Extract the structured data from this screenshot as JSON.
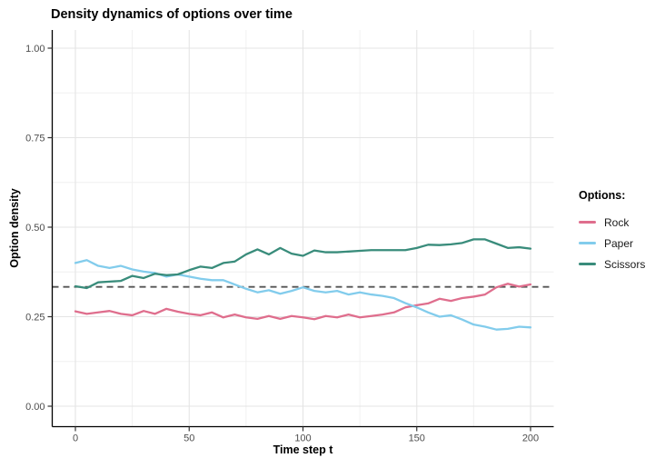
{
  "chart_data": {
    "type": "line",
    "title": "Density dynamics of options over time",
    "xlabel": "Time step t",
    "ylabel": "Option density",
    "legend": {
      "title": "Options:",
      "position": "right"
    },
    "x": [
      0,
      5,
      10,
      15,
      20,
      25,
      30,
      35,
      40,
      45,
      50,
      55,
      60,
      65,
      70,
      75,
      80,
      85,
      90,
      95,
      100,
      105,
      110,
      115,
      120,
      125,
      130,
      135,
      140,
      145,
      150,
      155,
      160,
      165,
      170,
      175,
      180,
      185,
      190,
      195,
      200
    ],
    "series": [
      {
        "name": "Rock",
        "color": "#DF6E8D",
        "values": [
          0.265,
          0.258,
          0.262,
          0.266,
          0.258,
          0.254,
          0.266,
          0.258,
          0.272,
          0.264,
          0.258,
          0.254,
          0.262,
          0.248,
          0.256,
          0.248,
          0.244,
          0.252,
          0.244,
          0.252,
          0.248,
          0.243,
          0.252,
          0.248,
          0.256,
          0.248,
          0.252,
          0.256,
          0.262,
          0.276,
          0.282,
          0.287,
          0.3,
          0.294,
          0.302,
          0.306,
          0.312,
          0.332,
          0.342,
          0.334,
          0.34
        ]
      },
      {
        "name": "Paper",
        "color": "#82CCEC",
        "values": [
          0.4,
          0.408,
          0.392,
          0.386,
          0.392,
          0.382,
          0.376,
          0.372,
          0.362,
          0.368,
          0.362,
          0.356,
          0.352,
          0.352,
          0.34,
          0.328,
          0.318,
          0.324,
          0.314,
          0.322,
          0.332,
          0.322,
          0.318,
          0.322,
          0.312,
          0.318,
          0.312,
          0.308,
          0.302,
          0.288,
          0.276,
          0.262,
          0.25,
          0.254,
          0.242,
          0.228,
          0.222,
          0.214,
          0.216,
          0.222,
          0.22
        ]
      },
      {
        "name": "Scissors",
        "color": "#398C7B",
        "values": [
          0.335,
          0.33,
          0.346,
          0.348,
          0.35,
          0.364,
          0.358,
          0.37,
          0.366,
          0.368,
          0.38,
          0.39,
          0.386,
          0.4,
          0.404,
          0.424,
          0.438,
          0.424,
          0.442,
          0.426,
          0.42,
          0.435,
          0.43,
          0.43,
          0.432,
          0.434,
          0.436,
          0.436,
          0.436,
          0.436,
          0.442,
          0.451,
          0.45,
          0.452,
          0.456,
          0.466,
          0.466,
          0.454,
          0.442,
          0.444,
          0.44
        ]
      }
    ],
    "reference_line": {
      "value": 0.3333,
      "style": "dashed",
      "color": "#555555"
    },
    "axes": {
      "x": {
        "ticks": [
          0,
          50,
          100,
          150,
          200
        ],
        "tick_labels": [
          "0",
          "50",
          "100",
          "150",
          "200"
        ],
        "minor": [
          25,
          75,
          125,
          175
        ],
        "range": [
          -10,
          210
        ]
      },
      "y": {
        "ticks": [
          0,
          0.25,
          0.5,
          0.75,
          1.0
        ],
        "tick_labels": [
          "0.00",
          "0.25",
          "0.50",
          "0.75",
          "1.00"
        ],
        "minor": [
          0.125,
          0.375,
          0.625,
          0.875
        ],
        "range": [
          -0.05,
          1.05
        ]
      }
    },
    "grid": true,
    "colors": {
      "grid_major": "#E4E4E4",
      "grid_minor": "#F0F0F0",
      "axis": "#000000",
      "tick_text": "#4D4D4D"
    }
  }
}
